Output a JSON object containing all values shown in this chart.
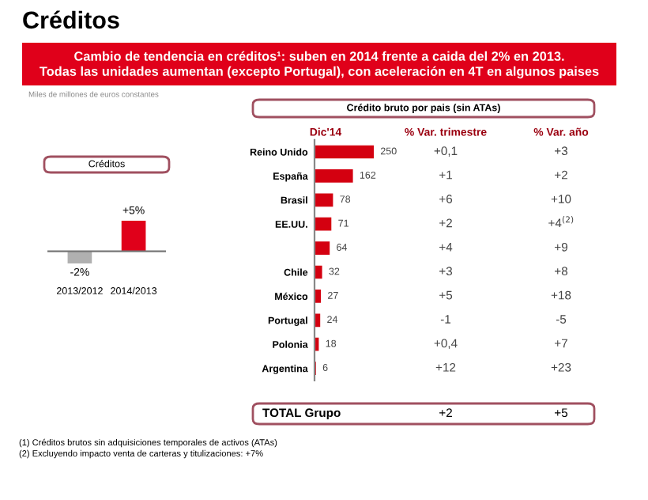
{
  "chart_data": [
    {
      "type": "other",
      "title": "Créditos",
      "subtitle": "Cambio de tendencia en créditos¹: suben en 2014 frente a caida del 2% en 2013.\nTodas las unidades aumentan (excepto Portugal), con aceleración en 4T en algunos paises",
      "annotations": [
        "Miles de millones de euros constantes",
        "(1) Créditos brutos sin adquisiciones temporales de activos (ATAs)",
        "(2) Excluyendo impacto venta de carteras y titulizaciones: +7%"
      ]
    },
    {
      "type": "bar",
      "title": "Créditos",
      "categories": [
        "2013/2012",
        "2014/2013"
      ],
      "values": [
        -2,
        5
      ],
      "colors": [
        "#b0b0b0",
        "#e0001a"
      ],
      "value_labels": [
        "-2%",
        "+5%"
      ]
    },
    {
      "type": "bar",
      "orientation": "horizontal",
      "title": "Crédito bruto por pais (sin ATAs)",
      "xlabel": "Dic'14",
      "categories": [
        "Reino Unido",
        "España",
        "Brasil",
        "EE.UU.",
        null,
        "Chile",
        "México",
        "Portugal",
        "Polonia",
        "Argentina"
      ],
      "values": [
        250,
        162,
        78,
        71,
        64,
        32,
        27,
        24,
        18,
        6
      ],
      "color": "#d40010",
      "data_labels": true
    },
    {
      "type": "other",
      "annotations": [
        "% Var. trimestre",
        "% Var. año",
        "+0,1",
        "+3",
        "+1",
        "+2",
        "+6",
        "+10",
        "+2",
        "+4$^{(2)}$",
        "+4",
        "+9",
        "+3",
        "+8",
        "+5",
        "+18",
        "-1",
        "-5",
        "+0,4",
        "+7",
        "+12",
        "+23",
        "TOTAL Grupo",
        "+2",
        "+5"
      ]
    }
  ]
}
